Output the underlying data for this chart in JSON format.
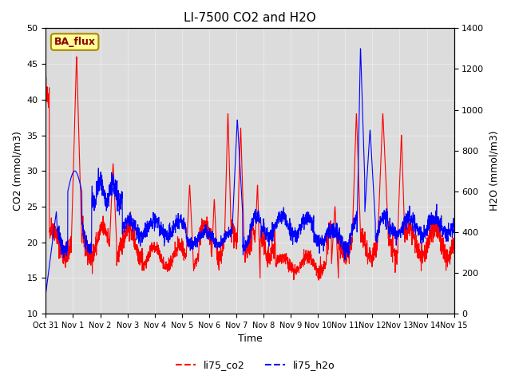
{
  "title": "LI-7500 CO2 and H2O",
  "xlabel": "Time",
  "ylabel_left": "CO2 (mmol/m3)",
  "ylabel_right": "H2O (mmol/m3)",
  "ylim_left": [
    10,
    50
  ],
  "ylim_right": [
    0,
    1400
  ],
  "yticks_left": [
    10,
    15,
    20,
    25,
    30,
    35,
    40,
    45,
    50
  ],
  "yticks_right": [
    0,
    200,
    400,
    600,
    800,
    1000,
    1200,
    1400
  ],
  "x_labels": [
    "Oct 31",
    "Nov 1",
    "Nov 2",
    "Nov 3",
    "Nov 4",
    "Nov 5",
    "Nov 6",
    "Nov 7",
    "Nov 8",
    "Nov 9",
    "Nov 10",
    "Nov 11",
    "Nov 12",
    "Nov 13",
    "Nov 14",
    "Nov 15"
  ],
  "color_co2": "#FF0000",
  "color_h2o": "#0000FF",
  "plot_bg_color": "#DCDCDC",
  "legend_items": [
    "li75_co2",
    "li75_h2o"
  ],
  "ba_flux_label": "BA_flux",
  "ba_flux_bg": "#FFFF99",
  "ba_flux_border": "#AA8800"
}
